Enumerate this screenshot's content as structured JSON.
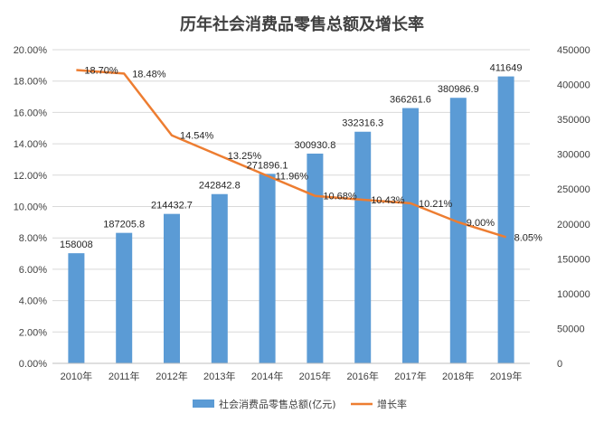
{
  "chart_data": {
    "type": "bar",
    "title": "历年社会消费品零售总额及增长率",
    "categories": [
      "2010年",
      "2011年",
      "2012年",
      "2013年",
      "2014年",
      "2015年",
      "2016年",
      "2017年",
      "2018年",
      "2019年"
    ],
    "series": [
      {
        "name": "社会消费品零售总额(亿元)",
        "type": "bar",
        "axis": "right",
        "color": "#5b9bd5",
        "values": [
          158008,
          187205.8,
          214432.7,
          242842.8,
          271896.1,
          300930.8,
          332316.3,
          366261.6,
          380986.9,
          411649
        ],
        "labels": [
          "158008",
          "187205.8",
          "214432.7",
          "242842.8",
          "271896.1",
          "300930.8",
          "332316.3",
          "366261.6",
          "380986.9",
          "411649"
        ]
      },
      {
        "name": "增长率",
        "type": "line",
        "axis": "left",
        "color": "#ed7d31",
        "values": [
          18.7,
          18.48,
          14.54,
          13.25,
          11.96,
          10.68,
          10.43,
          10.21,
          9.0,
          8.05
        ],
        "labels": [
          "18.70%",
          "18.48%",
          "14.54%",
          "13.25%",
          "11.96%",
          "10.68%",
          "10.43%",
          "10.21%",
          "9.00%",
          "8.05%"
        ]
      }
    ],
    "y_left": {
      "range": [
        0,
        20
      ],
      "ticks": [
        "0.00%",
        "2.00%",
        "4.00%",
        "6.00%",
        "8.00%",
        "10.00%",
        "12.00%",
        "14.00%",
        "16.00%",
        "18.00%",
        "20.00%"
      ]
    },
    "y_right": {
      "range": [
        0,
        450000
      ],
      "ticks": [
        "0",
        "50000",
        "100000",
        "150000",
        "200000",
        "250000",
        "300000",
        "350000",
        "400000",
        "450000"
      ]
    },
    "grid": true,
    "legend_position": "bottom"
  }
}
